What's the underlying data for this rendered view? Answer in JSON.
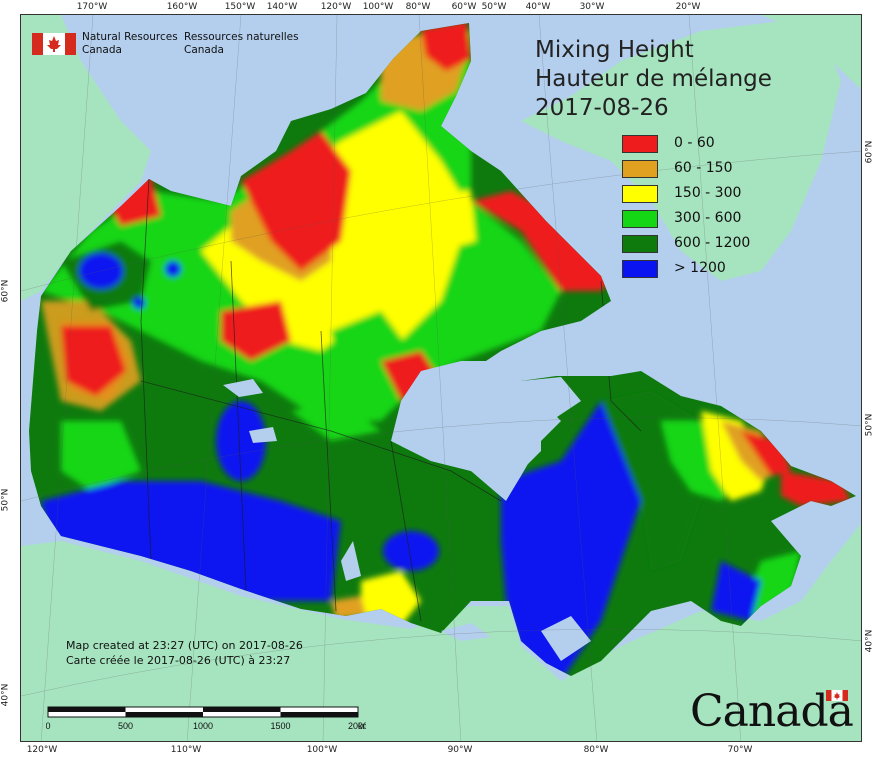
{
  "title": {
    "line1": "Mixing Height",
    "line2": "Hauteur de mélange",
    "date": "2017-08-26"
  },
  "organization": {
    "en_line1": "Natural Resources",
    "en_line2": "Canada",
    "fr_line1": "Ressources naturelles",
    "fr_line2": "Canada"
  },
  "legend": [
    {
      "label": "0 - 60",
      "color": "#ee1c1c"
    },
    {
      "label": "60 - 150",
      "color": "#e0a020"
    },
    {
      "label": "150 - 300",
      "color": "#ffff00"
    },
    {
      "label": "300 - 600",
      "color": "#14d614"
    },
    {
      "label": "600 - 1200",
      "color": "#0e7a0e"
    },
    {
      "label": "> 1200",
      "color": "#0a14f0"
    }
  ],
  "map_colors": {
    "water": "#b4cfee",
    "land_outside": "#a6e3bf"
  },
  "created": {
    "en": "Map created at 23:27 (UTC) on 2017-08-26",
    "fr": "Carte créée le 2017-08-26 (UTC) à 23:27"
  },
  "scale": {
    "labels": [
      "0",
      "500",
      "1000",
      "1500",
      "2000"
    ],
    "unit": "km"
  },
  "wordmark": "Canada",
  "graticule": {
    "top": [
      "170°W",
      "160°W",
      "150°W",
      "140°W",
      "120°W",
      "100°W",
      "80°W",
      "60°W",
      "50°W",
      "40°W",
      "30°W",
      "20°W"
    ],
    "bottom": [
      "120°W",
      "110°W",
      "100°W",
      "90°W",
      "80°W",
      "70°W"
    ],
    "left": [
      "60°N",
      "50°N",
      "40°N"
    ],
    "right": [
      "60°N",
      "50°N",
      "40°N"
    ]
  }
}
